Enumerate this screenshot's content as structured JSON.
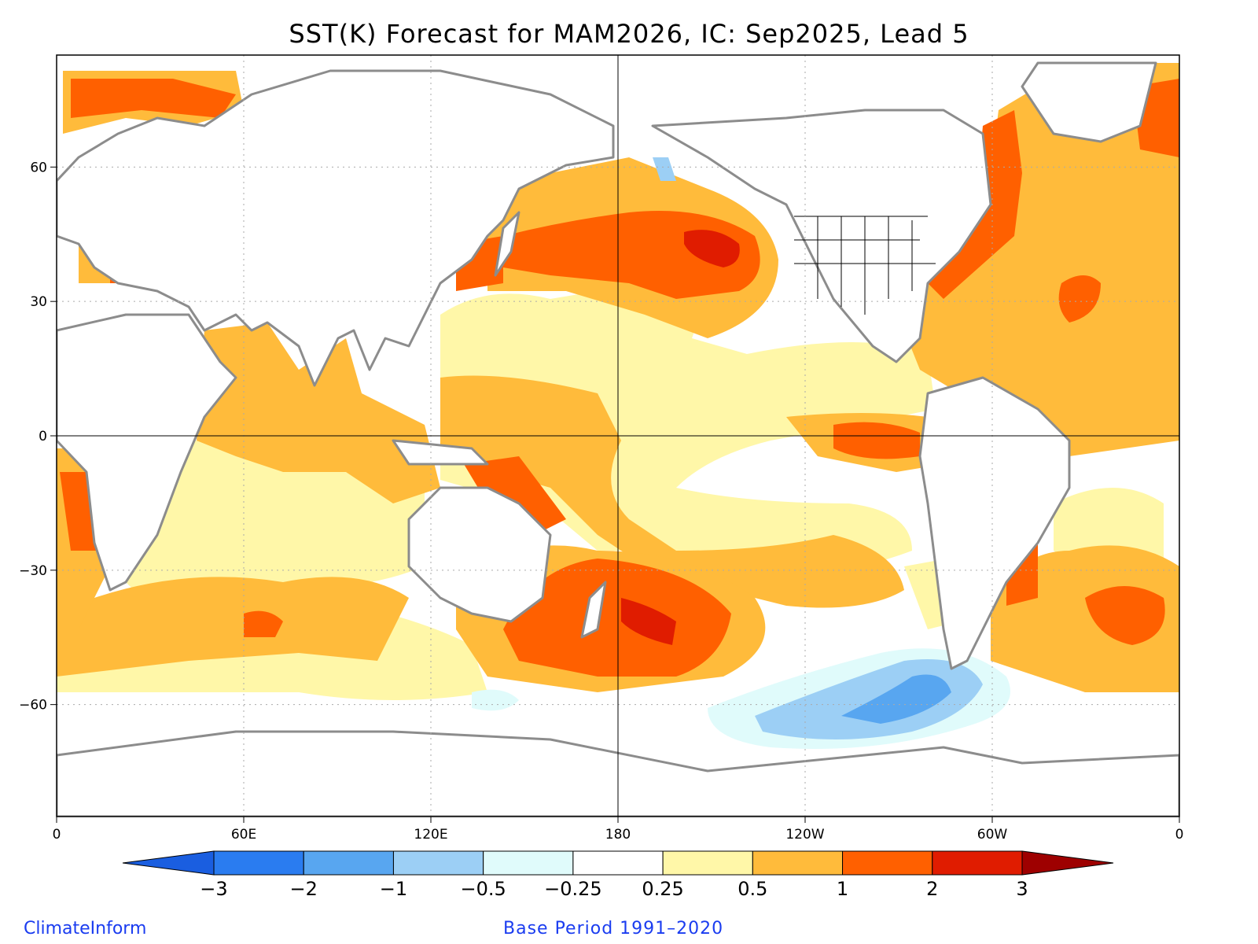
{
  "title": "SST(K) Forecast for MAM2026, IC: Sep2025, Lead 5",
  "map": {
    "projection": "equirectangular",
    "lon_range": [
      0,
      360
    ],
    "lat_range": [
      -85,
      85
    ],
    "x_ticks": [
      {
        "lon": 0,
        "label": "0"
      },
      {
        "lon": 60,
        "label": "60E"
      },
      {
        "lon": 120,
        "label": "120E"
      },
      {
        "lon": 180,
        "label": "180"
      },
      {
        "lon": 240,
        "label": "120W"
      },
      {
        "lon": 300,
        "label": "60W"
      },
      {
        "lon": 360,
        "label": "0"
      }
    ],
    "y_ticks": [
      {
        "lat": 60,
        "label": "60"
      },
      {
        "lat": 30,
        "label": "30"
      },
      {
        "lat": 0,
        "label": "0"
      },
      {
        "lat": -30,
        "label": "-30"
      },
      {
        "lat": -60,
        "label": "-60"
      }
    ],
    "grid": "dotted",
    "land_color": "#ffffff",
    "coastline_color": "#8c8c8c"
  },
  "colorbar": {
    "levels": [
      "-3",
      "-2",
      "-1",
      "-0.5",
      "-0.25",
      "0.25",
      "0.5",
      "1",
      "2",
      "3"
    ],
    "colors": [
      "#1a5ee0",
      "#2a7cf0",
      "#58a6f0",
      "#9ccff5",
      "#e0fbfb",
      "#ffffff",
      "#fff7a8",
      "#ffbb3b",
      "#ff6000",
      "#e01c00",
      "#9e0000"
    ]
  },
  "credit": "ClimateInform",
  "base_period": "Base Period 1991–2020"
}
